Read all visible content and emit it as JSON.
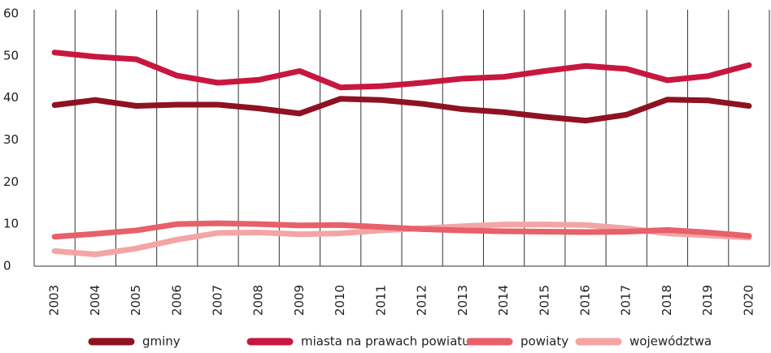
{
  "chart_data": {
    "type": "line",
    "categories": [
      "2003",
      "2004",
      "2005",
      "2006",
      "2007",
      "2008",
      "2009",
      "2010",
      "2011",
      "2012",
      "2013",
      "2014",
      "2015",
      "2016",
      "2017",
      "2018",
      "2019",
      "2020"
    ],
    "series": [
      {
        "name": "gminy",
        "color": "#8e1222",
        "values": [
          38.3,
          39.5,
          38.1,
          38.4,
          38.4,
          37.5,
          36.3,
          39.8,
          39.5,
          38.6,
          37.3,
          36.6,
          35.5,
          34.6,
          36.0,
          39.6,
          39.4,
          38.1
        ]
      },
      {
        "name": "miasta na prawach powiatu",
        "color": "#c8173f",
        "values": [
          50.8,
          49.8,
          49.2,
          45.3,
          43.6,
          44.3,
          46.4,
          42.5,
          42.8,
          43.6,
          44.6,
          45.0,
          46.4,
          47.6,
          46.9,
          44.2,
          45.2,
          47.8
        ]
      },
      {
        "name": "powiaty",
        "color": "#e8606a",
        "values": [
          7.0,
          7.7,
          8.5,
          10.0,
          10.2,
          10.0,
          9.7,
          9.8,
          9.3,
          8.8,
          8.5,
          8.3,
          8.2,
          8.1,
          8.2,
          8.6,
          8.0,
          7.2
        ]
      },
      {
        "name": "województwa",
        "color": "#f3a5a5",
        "values": [
          3.6,
          2.8,
          4.2,
          6.3,
          7.9,
          8.0,
          7.6,
          7.8,
          8.5,
          9.0,
          9.5,
          9.9,
          9.9,
          9.8,
          9.0,
          7.8,
          7.3,
          6.8
        ]
      }
    ],
    "ylim": [
      0,
      60
    ],
    "yticks": [
      0,
      10,
      20,
      30,
      40,
      50,
      60
    ]
  }
}
